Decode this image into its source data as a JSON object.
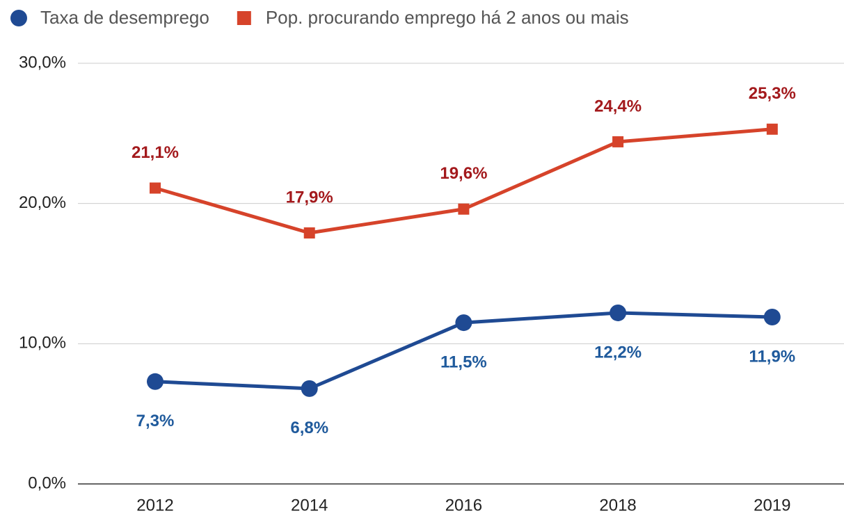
{
  "chart_data": {
    "type": "line",
    "categories": [
      "2012",
      "2014",
      "2016",
      "2018",
      "2019"
    ],
    "series": [
      {
        "name": "Taxa de desemprego",
        "color": "#1f4a93",
        "label_color": "#1f5a9c",
        "marker": "circle",
        "values": [
          7.3,
          6.8,
          11.5,
          12.2,
          11.9
        ],
        "value_labels": [
          "7,3%",
          "6,8%",
          "11,5%",
          "12,2%",
          "11,9%"
        ]
      },
      {
        "name": "Pop. procurando emprego há 2 anos ou mais",
        "color": "#d6432a",
        "label_color": "#a3191c",
        "marker": "square",
        "values": [
          21.1,
          17.9,
          19.6,
          24.4,
          25.3
        ],
        "value_labels": [
          "21,1%",
          "17,9%",
          "19,6%",
          "24,4%",
          "25,3%"
        ]
      }
    ],
    "ylim": [
      0,
      30
    ],
    "yticks": [
      {
        "value": 0,
        "label": "0,0%"
      },
      {
        "value": 10,
        "label": "10,0%"
      },
      {
        "value": 20,
        "label": "20,0%"
      },
      {
        "value": 30,
        "label": "30,0%"
      }
    ],
    "grid": true
  }
}
